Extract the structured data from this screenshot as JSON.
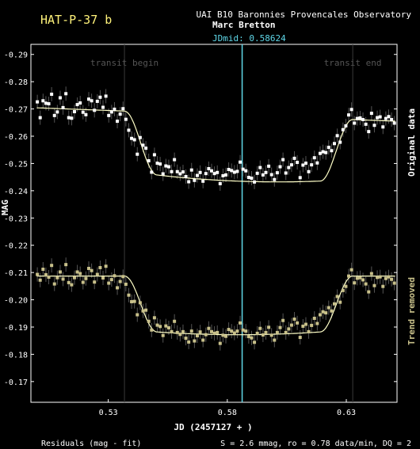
{
  "colors": {
    "background": "#000000",
    "title": "#fff27a",
    "text": "#ffffff",
    "jdmid": "#5fd7e8",
    "original_points": "#ffffff",
    "fit_line": "#ffffc8",
    "trend_points": "#c8c08a",
    "errorbar": "#555555",
    "transit_line": "#3a3a3a",
    "transit_label": "#555555",
    "side_label_trend": "#c8c08a"
  },
  "chart_data": {
    "type": "scatter",
    "title": "HAT-P-37 b",
    "observatory": "UAI B10 Baronnies Provencales Observatory",
    "observer": "Marc Bretton",
    "jdmid_label": "JDmid: 0.58624",
    "jdmid": 0.58624,
    "transit_begin_label": "transit begin",
    "transit_end_label": "transit end",
    "transit_begin": 0.5368,
    "transit_end": 0.6327,
    "xlabel": "JD (2457127 + )",
    "ylabel": "MAG",
    "xlim": [
      0.4975,
      0.6513
    ],
    "ylim": [
      -0.1624,
      -0.2937
    ],
    "y_inverted": true,
    "x_ticks": [
      0.53,
      0.58,
      0.63
    ],
    "x_tick_labels": [
      "0.53",
      "0.58",
      "0.63"
    ],
    "y_ticks": [
      -0.29,
      -0.28,
      -0.27,
      -0.26,
      -0.25,
      -0.24,
      -0.23,
      -0.22,
      -0.21,
      -0.2,
      -0.19,
      -0.18,
      -0.17
    ],
    "y_tick_labels": [
      "-0.29",
      "-0.28",
      "-0.27",
      "-0.26",
      "-0.25",
      "-0.24",
      "-0.23",
      "-0.22",
      "-0.21",
      "-0.20",
      "-0.19",
      "-0.18",
      "-0.17"
    ],
    "side_label_original": "Original data",
    "side_label_trend": "Trend removed",
    "residuals_label": "Residuals (mag - fit)",
    "stats_label": "S = 2.6 mmag, ro = 0.78 data/min, DQ = 2",
    "model": {
      "original": {
        "baseline_start": -0.2705,
        "baseline_end": -0.2655,
        "depth": 0.023
      },
      "trend_removed": {
        "baseline_start": -0.2087,
        "baseline_end": -0.2087,
        "depth": 0.0205
      },
      "ingress_end": 0.5505,
      "egress_start": 0.619
    },
    "series": [
      {
        "name": "Original data",
        "points": [
          [
            0.5002,
            -0.2726
          ],
          [
            0.5014,
            -0.2668
          ],
          [
            0.5026,
            -0.273
          ],
          [
            0.5038,
            -0.2721
          ],
          [
            0.505,
            -0.2719
          ],
          [
            0.5062,
            -0.2754
          ],
          [
            0.5074,
            -0.2676
          ],
          [
            0.5086,
            -0.2689
          ],
          [
            0.5098,
            -0.2741
          ],
          [
            0.511,
            -0.2705
          ],
          [
            0.5122,
            -0.2756
          ],
          [
            0.5134,
            -0.2668
          ],
          [
            0.5146,
            -0.2666
          ],
          [
            0.5158,
            -0.269
          ],
          [
            0.517,
            -0.2716
          ],
          [
            0.5182,
            -0.2722
          ],
          [
            0.5194,
            -0.2688
          ],
          [
            0.5206,
            -0.2679
          ],
          [
            0.5218,
            -0.2736
          ],
          [
            0.523,
            -0.273
          ],
          [
            0.5242,
            -0.2695
          ],
          [
            0.5254,
            -0.2728
          ],
          [
            0.5266,
            -0.2743
          ],
          [
            0.5278,
            -0.2706
          ],
          [
            0.529,
            -0.2747
          ],
          [
            0.5302,
            -0.2676
          ],
          [
            0.5314,
            -0.2689
          ],
          [
            0.5326,
            -0.2699
          ],
          [
            0.5338,
            -0.2655
          ],
          [
            0.535,
            -0.2681
          ],
          [
            0.5362,
            -0.2701
          ],
          [
            0.5374,
            -0.2662
          ],
          [
            0.5386,
            -0.2622
          ],
          [
            0.5398,
            -0.2592
          ],
          [
            0.541,
            -0.2587
          ],
          [
            0.5422,
            -0.2534
          ],
          [
            0.5434,
            -0.2595
          ],
          [
            0.5446,
            -0.2567
          ],
          [
            0.5458,
            -0.2556
          ],
          [
            0.547,
            -0.251
          ],
          [
            0.5482,
            -0.2468
          ],
          [
            0.5494,
            -0.2532
          ],
          [
            0.5506,
            -0.2501
          ],
          [
            0.5518,
            -0.2498
          ],
          [
            0.553,
            -0.2462
          ],
          [
            0.5542,
            -0.2491
          ],
          [
            0.5554,
            -0.2488
          ],
          [
            0.5566,
            -0.247
          ],
          [
            0.5578,
            -0.2514
          ],
          [
            0.559,
            -0.247
          ],
          [
            0.5602,
            -0.2462
          ],
          [
            0.5614,
            -0.2469
          ],
          [
            0.5626,
            -0.2452
          ],
          [
            0.5638,
            -0.2433
          ],
          [
            0.565,
            -0.2476
          ],
          [
            0.5662,
            -0.2438
          ],
          [
            0.5674,
            -0.2456
          ],
          [
            0.5686,
            -0.2467
          ],
          [
            0.5698,
            -0.2435
          ],
          [
            0.571,
            -0.2463
          ],
          [
            0.5722,
            -0.2481
          ],
          [
            0.5734,
            -0.2473
          ],
          [
            0.5746,
            -0.2463
          ],
          [
            0.5758,
            -0.2467
          ],
          [
            0.577,
            -0.2426
          ],
          [
            0.5782,
            -0.2455
          ],
          [
            0.5794,
            -0.2458
          ],
          [
            0.5806,
            -0.2478
          ],
          [
            0.5818,
            -0.2474
          ],
          [
            0.583,
            -0.2468
          ],
          [
            0.5842,
            -0.2471
          ],
          [
            0.5854,
            -0.2505
          ],
          [
            0.5866,
            -0.2479
          ],
          [
            0.5878,
            -0.2473
          ],
          [
            0.589,
            -0.2449
          ],
          [
            0.5902,
            -0.2446
          ],
          [
            0.5914,
            -0.2432
          ],
          [
            0.5926,
            -0.2464
          ],
          [
            0.5938,
            -0.2485
          ],
          [
            0.595,
            -0.2458
          ],
          [
            0.5962,
            -0.2467
          ],
          [
            0.5974,
            -0.249
          ],
          [
            0.5986,
            -0.2459
          ],
          [
            0.5998,
            -0.2441
          ],
          [
            0.601,
            -0.2466
          ],
          [
            0.6022,
            -0.2488
          ],
          [
            0.6034,
            -0.2514
          ],
          [
            0.6046,
            -0.2465
          ],
          [
            0.6058,
            -0.2485
          ],
          [
            0.607,
            -0.2495
          ],
          [
            0.6082,
            -0.2519
          ],
          [
            0.6094,
            -0.2504
          ],
          [
            0.6106,
            -0.2448
          ],
          [
            0.6118,
            -0.2494
          ],
          [
            0.613,
            -0.2501
          ],
          [
            0.6142,
            -0.247
          ],
          [
            0.6154,
            -0.2495
          ],
          [
            0.6166,
            -0.2521
          ],
          [
            0.6178,
            -0.2502
          ],
          [
            0.619,
            -0.2537
          ],
          [
            0.6202,
            -0.2543
          ],
          [
            0.6214,
            -0.254
          ],
          [
            0.6226,
            -0.2559
          ],
          [
            0.6238,
            -0.2547
          ],
          [
            0.625,
            -0.2573
          ],
          [
            0.6262,
            -0.2602
          ],
          [
            0.6274,
            -0.2578
          ],
          [
            0.6286,
            -0.2624
          ],
          [
            0.6298,
            -0.2638
          ],
          [
            0.631,
            -0.2678
          ],
          [
            0.6322,
            -0.2698
          ],
          [
            0.6334,
            -0.2648
          ],
          [
            0.6346,
            -0.2665
          ],
          [
            0.6358,
            -0.2667
          ],
          [
            0.637,
            -0.2661
          ],
          [
            0.6382,
            -0.2644
          ],
          [
            0.6394,
            -0.2617
          ],
          [
            0.6406,
            -0.2684
          ],
          [
            0.6418,
            -0.264
          ],
          [
            0.643,
            -0.2668
          ],
          [
            0.6442,
            -0.2671
          ],
          [
            0.6454,
            -0.2634
          ],
          [
            0.6466,
            -0.2665
          ],
          [
            0.6478,
            -0.2672
          ],
          [
            0.649,
            -0.2661
          ],
          [
            0.6502,
            -0.2648
          ]
        ]
      },
      {
        "name": "Trend removed",
        "points": [
          [
            0.5002,
            -0.2093
          ],
          [
            0.5014,
            -0.2072
          ],
          [
            0.5026,
            -0.2112
          ],
          [
            0.5038,
            -0.2092
          ],
          [
            0.505,
            -0.2083
          ],
          [
            0.5062,
            -0.2126
          ],
          [
            0.5074,
            -0.2058
          ],
          [
            0.5086,
            -0.2081
          ],
          [
            0.5098,
            -0.2102
          ],
          [
            0.511,
            -0.2076
          ],
          [
            0.5122,
            -0.2129
          ],
          [
            0.5134,
            -0.2063
          ],
          [
            0.5146,
            -0.2055
          ],
          [
            0.5158,
            -0.2081
          ],
          [
            0.517,
            -0.2102
          ],
          [
            0.5182,
            -0.2096
          ],
          [
            0.5194,
            -0.2064
          ],
          [
            0.5206,
            -0.2078
          ],
          [
            0.5218,
            -0.2115
          ],
          [
            0.523,
            -0.2107
          ],
          [
            0.5242,
            -0.2065
          ],
          [
            0.5254,
            -0.2093
          ],
          [
            0.5266,
            -0.2118
          ],
          [
            0.5278,
            -0.208
          ],
          [
            0.529,
            -0.2123
          ],
          [
            0.5302,
            -0.2061
          ],
          [
            0.5314,
            -0.2074
          ],
          [
            0.5326,
            -0.2088
          ],
          [
            0.5338,
            -0.2044
          ],
          [
            0.535,
            -0.2067
          ],
          [
            0.5362,
            -0.2085
          ],
          [
            0.5374,
            -0.2057
          ],
          [
            0.5386,
            -0.2017
          ],
          [
            0.5398,
            -0.1993
          ],
          [
            0.541,
            -0.1994
          ],
          [
            0.5422,
            -0.1945
          ],
          [
            0.5434,
            -0.1989
          ],
          [
            0.5446,
            -0.1959
          ],
          [
            0.5458,
            -0.1962
          ],
          [
            0.547,
            -0.1921
          ],
          [
            0.5482,
            -0.1889
          ],
          [
            0.5494,
            -0.1934
          ],
          [
            0.5506,
            -0.1907
          ],
          [
            0.5518,
            -0.1902
          ],
          [
            0.553,
            -0.1869
          ],
          [
            0.5542,
            -0.1904
          ],
          [
            0.5554,
            -0.1897
          ],
          [
            0.5566,
            -0.1883
          ],
          [
            0.5578,
            -0.1921
          ],
          [
            0.559,
            -0.188
          ],
          [
            0.5602,
            -0.1873
          ],
          [
            0.5614,
            -0.1883
          ],
          [
            0.5626,
            -0.1859
          ],
          [
            0.5638,
            -0.1845
          ],
          [
            0.565,
            -0.1885
          ],
          [
            0.5662,
            -0.1849
          ],
          [
            0.5674,
            -0.1868
          ],
          [
            0.5686,
            -0.1882
          ],
          [
            0.5698,
            -0.1852
          ],
          [
            0.571,
            -0.1872
          ],
          [
            0.5722,
            -0.1895
          ],
          [
            0.5734,
            -0.1883
          ],
          [
            0.5746,
            -0.1877
          ],
          [
            0.5758,
            -0.188
          ],
          [
            0.577,
            -0.184
          ],
          [
            0.5782,
            -0.187
          ],
          [
            0.5794,
            -0.1866
          ],
          [
            0.5806,
            -0.1891
          ],
          [
            0.5818,
            -0.1885
          ],
          [
            0.583,
            -0.1878
          ],
          [
            0.5842,
            -0.1885
          ],
          [
            0.5854,
            -0.1915
          ],
          [
            0.5866,
            -0.1889
          ],
          [
            0.5878,
            -0.1885
          ],
          [
            0.589,
            -0.1865
          ],
          [
            0.5902,
            -0.186
          ],
          [
            0.5914,
            -0.1844
          ],
          [
            0.5926,
            -0.1877
          ],
          [
            0.5938,
            -0.1895
          ],
          [
            0.595,
            -0.1871
          ],
          [
            0.5962,
            -0.188
          ],
          [
            0.5974,
            -0.1899
          ],
          [
            0.5986,
            -0.187
          ],
          [
            0.5998,
            -0.1852
          ],
          [
            0.601,
            -0.188
          ],
          [
            0.6022,
            -0.1898
          ],
          [
            0.6034,
            -0.1924
          ],
          [
            0.6046,
            -0.188
          ],
          [
            0.6058,
            -0.1893
          ],
          [
            0.607,
            -0.1907
          ],
          [
            0.6082,
            -0.1929
          ],
          [
            0.6094,
            -0.1915
          ],
          [
            0.6106,
            -0.1862
          ],
          [
            0.6118,
            -0.1903
          ],
          [
            0.613,
            -0.191
          ],
          [
            0.6142,
            -0.1883
          ],
          [
            0.6154,
            -0.1906
          ],
          [
            0.6166,
            -0.1932
          ],
          [
            0.6178,
            -0.1913
          ],
          [
            0.619,
            -0.1945
          ],
          [
            0.6202,
            -0.1956
          ],
          [
            0.6214,
            -0.1952
          ],
          [
            0.6226,
            -0.1971
          ],
          [
            0.6238,
            -0.1959
          ],
          [
            0.625,
            -0.1985
          ],
          [
            0.6262,
            -0.2012
          ],
          [
            0.6274,
            -0.1991
          ],
          [
            0.6286,
            -0.2034
          ],
          [
            0.6298,
            -0.2049
          ],
          [
            0.631,
            -0.2087
          ],
          [
            0.6322,
            -0.211
          ],
          [
            0.6334,
            -0.2062
          ],
          [
            0.6346,
            -0.2079
          ],
          [
            0.6358,
            -0.2081
          ],
          [
            0.637,
            -0.2073
          ],
          [
            0.6382,
            -0.2058
          ],
          [
            0.6394,
            -0.2029
          ],
          [
            0.6406,
            -0.2096
          ],
          [
            0.6418,
            -0.2052
          ],
          [
            0.643,
            -0.2082
          ],
          [
            0.6442,
            -0.2084
          ],
          [
            0.6454,
            -0.2049
          ],
          [
            0.6466,
            -0.2078
          ],
          [
            0.6478,
            -0.2084
          ],
          [
            0.649,
            -0.2075
          ],
          [
            0.6502,
            -0.2061
          ]
        ]
      }
    ]
  }
}
